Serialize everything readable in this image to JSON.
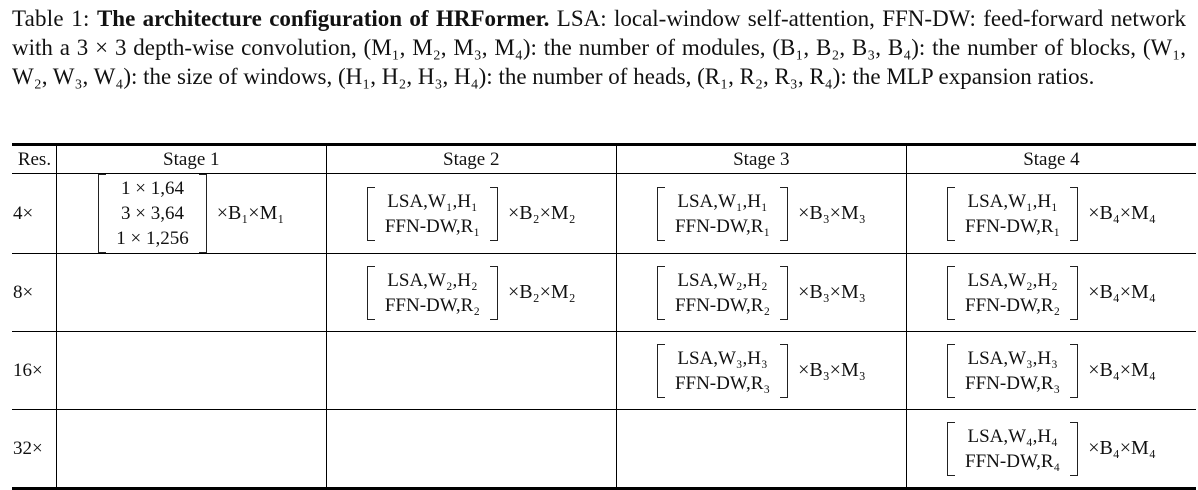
{
  "caption": {
    "label": "Table 1:",
    "title": "The architecture configuration of HRFormer.",
    "body": "LSA: local-window self-attention, FFN-DW: feed-forward network with a 3 × 3 depth-wise convolution, (M₁, M₂, M₃, M₄): the number of modules, (B₁, B₂, B₃, B₄): the number of blocks, (W₁, W₂, W₃, W₄): the size of windows, (H₁, H₂, H₃, H₄): the number of heads, (R₁, R₂, R₃, R₄): the MLP expansion ratios."
  },
  "table": {
    "headers": [
      "Res.",
      "Stage 1",
      "Stage 2",
      "Stage 3",
      "Stage 4"
    ],
    "rows": [
      {
        "res": "4×",
        "cells": [
          {
            "lines": [
              "1 × 1,64",
              "3 × 3,64",
              "1 × 1,256"
            ],
            "mult": "×B₁×M₁"
          },
          {
            "lines": [
              "LSA,W₁,H₁",
              "FFN-DW,R₁"
            ],
            "mult": "×B₂×M₂"
          },
          {
            "lines": [
              "LSA,W₁,H₁",
              "FFN-DW,R₁"
            ],
            "mult": "×B₃×M₃"
          },
          {
            "lines": [
              "LSA,W₁,H₁",
              "FFN-DW,R₁"
            ],
            "mult": "×B₄×M₄"
          }
        ]
      },
      {
        "res": "8×",
        "cells": [
          null,
          {
            "lines": [
              "LSA,W₂,H₂",
              "FFN-DW,R₂"
            ],
            "mult": "×B₂×M₂"
          },
          {
            "lines": [
              "LSA,W₂,H₂",
              "FFN-DW,R₂"
            ],
            "mult": "×B₃×M₃"
          },
          {
            "lines": [
              "LSA,W₂,H₂",
              "FFN-DW,R₂"
            ],
            "mult": "×B₄×M₄"
          }
        ]
      },
      {
        "res": "16×",
        "cells": [
          null,
          null,
          {
            "lines": [
              "LSA,W₃,H₃",
              "FFN-DW,R₃"
            ],
            "mult": "×B₃×M₃"
          },
          {
            "lines": [
              "LSA,W₃,H₃",
              "FFN-DW,R₃"
            ],
            "mult": "×B₄×M₄"
          }
        ]
      },
      {
        "res": "32×",
        "cells": [
          null,
          null,
          null,
          {
            "lines": [
              "LSA,W₄,H₄",
              "FFN-DW,R₄"
            ],
            "mult": "×B₄×M₄"
          }
        ]
      }
    ]
  }
}
